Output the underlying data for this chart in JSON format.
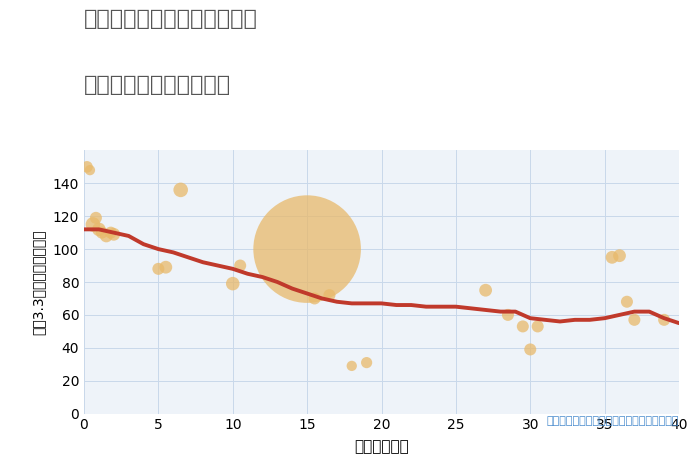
{
  "title_line1": "福岡県福岡市西区九大新町の",
  "title_line2": "築年数別中古戸建て価格",
  "xlabel": "築年数（年）",
  "ylabel": "坪（3.3㎡）単価（万円）",
  "annotation": "円の大きさは、取引のあった物件面積を示す",
  "xlim": [
    0,
    40
  ],
  "ylim": [
    0,
    160
  ],
  "xticks": [
    0,
    5,
    10,
    15,
    20,
    25,
    30,
    35,
    40
  ],
  "yticks": [
    0,
    20,
    40,
    60,
    80,
    100,
    120,
    140
  ],
  "background_color": "#eef3f9",
  "grid_color": "#c8d8ea",
  "bubble_color": "#e8b96a",
  "bubble_alpha": 0.75,
  "line_color": "#c0392b",
  "line_width": 2.8,
  "title_color": "#555555",
  "annotation_color": "#4488cc",
  "scatter_x": [
    0.2,
    0.4,
    0.6,
    0.8,
    1.0,
    1.2,
    1.5,
    1.8,
    2.0,
    6.5,
    5.0,
    5.5,
    10.0,
    10.5,
    15.0,
    15.5,
    16.5,
    18.0,
    19.0,
    27.0,
    28.5,
    29.5,
    30.0,
    30.5,
    35.5,
    36.0,
    36.5,
    37.0,
    39.0
  ],
  "scatter_y": [
    150,
    148,
    115,
    119,
    112,
    110,
    108,
    110,
    109,
    136,
    88,
    89,
    79,
    90,
    100,
    70,
    72,
    29,
    31,
    75,
    60,
    53,
    39,
    53,
    95,
    96,
    68,
    57,
    57
  ],
  "scatter_size": [
    70,
    55,
    110,
    75,
    95,
    75,
    85,
    75,
    85,
    110,
    75,
    85,
    95,
    75,
    6000,
    75,
    75,
    55,
    65,
    85,
    75,
    75,
    75,
    75,
    85,
    85,
    75,
    75,
    75
  ],
  "trend_x": [
    0,
    1,
    2,
    3,
    4,
    5,
    6,
    7,
    8,
    9,
    10,
    11,
    12,
    13,
    14,
    15,
    16,
    17,
    18,
    19,
    20,
    21,
    22,
    23,
    24,
    25,
    26,
    27,
    28,
    29,
    30,
    31,
    32,
    33,
    34,
    35,
    36,
    37,
    38,
    39,
    40
  ],
  "trend_y": [
    112,
    112,
    110,
    108,
    103,
    100,
    98,
    95,
    92,
    90,
    88,
    85,
    83,
    80,
    76,
    73,
    70,
    68,
    67,
    67,
    67,
    66,
    66,
    65,
    65,
    65,
    64,
    63,
    62,
    62,
    58,
    57,
    56,
    57,
    57,
    58,
    60,
    62,
    62,
    58,
    55
  ]
}
